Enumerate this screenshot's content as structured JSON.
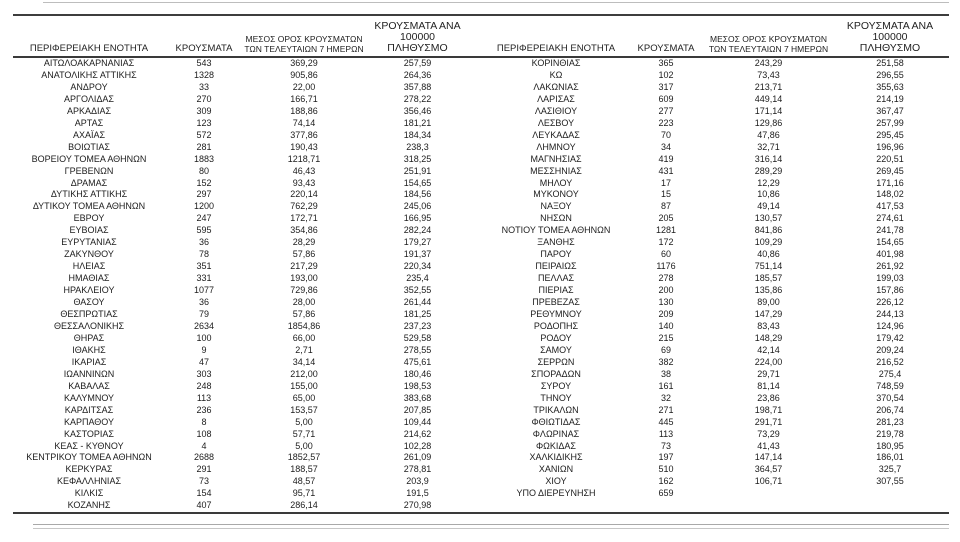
{
  "table": {
    "headers": {
      "region": "ΠΕΡΙΦΕΡΕΙΑΚΗ ΕΝΟΤΗΤΑ",
      "cases": "ΚΡΟΥΣΜΑΤΑ",
      "avg7day": "ΜΕΣΟΣ ΟΡΟΣ ΚΡΟΥΣΜΑΤΩΝ\nΤΩΝ ΤΕΛΕΥΤΑΙΩΝ 7 ΗΜΕΡΩΝ",
      "per100k": "ΚΡΟΥΣΜΑΤΑ ΑΝΑ 100000\nΠΛΗΘΥΣΜΟ"
    },
    "left_rows": [
      [
        "ΑΙΤΩΛΟΑΚΑΡΝΑΝΙΑΣ",
        "543",
        "369,29",
        "257,59"
      ],
      [
        "ΑΝΑΤΟΛΙΚΗΣ ΑΤΤΙΚΗΣ",
        "1328",
        "905,86",
        "264,36"
      ],
      [
        "ΑΝΔΡΟΥ",
        "33",
        "22,00",
        "357,88"
      ],
      [
        "ΑΡΓΟΛΙΔΑΣ",
        "270",
        "166,71",
        "278,22"
      ],
      [
        "ΑΡΚΑΔΙΑΣ",
        "309",
        "188,86",
        "356,46"
      ],
      [
        "ΑΡΤΑΣ",
        "123",
        "74,14",
        "181,21"
      ],
      [
        "ΑΧΑΪΑΣ",
        "572",
        "377,86",
        "184,34"
      ],
      [
        "ΒΟΙΩΤΙΑΣ",
        "281",
        "190,43",
        "238,3"
      ],
      [
        "ΒΟΡΕΙΟΥ ΤΟΜΕΑ ΑΘΗΝΩΝ",
        "1883",
        "1218,71",
        "318,25"
      ],
      [
        "ΓΡΕΒΕΝΩΝ",
        "80",
        "46,43",
        "251,91"
      ],
      [
        "ΔΡΑΜΑΣ",
        "152",
        "93,43",
        "154,65"
      ],
      [
        "ΔΥΤΙΚΗΣ ΑΤΤΙΚΗΣ",
        "297",
        "220,14",
        "184,56"
      ],
      [
        "ΔΥΤΙΚΟΥ ΤΟΜΕΑ ΑΘΗΝΩΝ",
        "1200",
        "762,29",
        "245,06"
      ],
      [
        "ΕΒΡΟΥ",
        "247",
        "172,71",
        "166,95"
      ],
      [
        "ΕΥΒΟΙΑΣ",
        "595",
        "354,86",
        "282,24"
      ],
      [
        "ΕΥΡΥΤΑΝΙΑΣ",
        "36",
        "28,29",
        "179,27"
      ],
      [
        "ΖΑΚΥΝΘΟΥ",
        "78",
        "57,86",
        "191,37"
      ],
      [
        "ΗΛΕΙΑΣ",
        "351",
        "217,29",
        "220,34"
      ],
      [
        "ΗΜΑΘΙΑΣ",
        "331",
        "193,00",
        "235,4"
      ],
      [
        "ΗΡΑΚΛΕΙΟΥ",
        "1077",
        "729,86",
        "352,55"
      ],
      [
        "ΘΑΣΟΥ",
        "36",
        "28,00",
        "261,44"
      ],
      [
        "ΘΕΣΠΡΩΤΙΑΣ",
        "79",
        "57,86",
        "181,25"
      ],
      [
        "ΘΕΣΣΑΛΟΝΙΚΗΣ",
        "2634",
        "1854,86",
        "237,23"
      ],
      [
        "ΘΗΡΑΣ",
        "100",
        "66,00",
        "529,58"
      ],
      [
        "ΙΘΑΚΗΣ",
        "9",
        "2,71",
        "278,55"
      ],
      [
        "ΙΚΑΡΙΑΣ",
        "47",
        "34,14",
        "475,61"
      ],
      [
        "ΙΩΑΝΝΙΝΩΝ",
        "303",
        "212,00",
        "180,46"
      ],
      [
        "ΚΑΒΑΛΑΣ",
        "248",
        "155,00",
        "198,53"
      ],
      [
        "ΚΑΛΥΜΝΟΥ",
        "113",
        "65,00",
        "383,68"
      ],
      [
        "ΚΑΡΔΙΤΣΑΣ",
        "236",
        "153,57",
        "207,85"
      ],
      [
        "ΚΑΡΠΑΘΟΥ",
        "8",
        "5,00",
        "109,44"
      ],
      [
        "ΚΑΣΤΟΡΙΑΣ",
        "108",
        "57,71",
        "214,62"
      ],
      [
        "ΚΕΑΣ - ΚΥΘΝΟΥ",
        "4",
        "5,00",
        "102,28"
      ],
      [
        "ΚΕΝΤΡΙΚΟΥ ΤΟΜΕΑ ΑΘΗΝΩΝ",
        "2688",
        "1852,57",
        "261,09"
      ],
      [
        "ΚΕΡΚΥΡΑΣ",
        "291",
        "188,57",
        "278,81"
      ],
      [
        "ΚΕΦΑΛΛΗΝΙΑΣ",
        "73",
        "48,57",
        "203,9"
      ],
      [
        "ΚΙΛΚΙΣ",
        "154",
        "95,71",
        "191,5"
      ],
      [
        "ΚΟΖΑΝΗΣ",
        "407",
        "286,14",
        "270,98"
      ]
    ],
    "right_rows": [
      [
        "ΚΟΡΙΝΘΙΑΣ",
        "365",
        "243,29",
        "251,58"
      ],
      [
        "ΚΩ",
        "102",
        "73,43",
        "296,55"
      ],
      [
        "ΛΑΚΩΝΙΑΣ",
        "317",
        "213,71",
        "355,63"
      ],
      [
        "ΛΑΡΙΣΑΣ",
        "609",
        "449,14",
        "214,19"
      ],
      [
        "ΛΑΣΙΘΙΟΥ",
        "277",
        "171,14",
        "367,47"
      ],
      [
        "ΛΕΣΒΟΥ",
        "223",
        "129,86",
        "257,99"
      ],
      [
        "ΛΕΥΚΑΔΑΣ",
        "70",
        "47,86",
        "295,45"
      ],
      [
        "ΛΗΜΝΟΥ",
        "34",
        "32,71",
        "196,96"
      ],
      [
        "ΜΑΓΝΗΣΙΑΣ",
        "419",
        "316,14",
        "220,51"
      ],
      [
        "ΜΕΣΣΗΝΙΑΣ",
        "431",
        "289,29",
        "269,45"
      ],
      [
        "ΜΗΛΟΥ",
        "17",
        "12,29",
        "171,16"
      ],
      [
        "ΜΥΚΟΝΟΥ",
        "15",
        "10,86",
        "148,02"
      ],
      [
        "ΝΑΞΟΥ",
        "87",
        "49,14",
        "417,53"
      ],
      [
        "ΝΗΣΩΝ",
        "205",
        "130,57",
        "274,61"
      ],
      [
        "ΝΟΤΙΟΥ ΤΟΜΕΑ ΑΘΗΝΩΝ",
        "1281",
        "841,86",
        "241,78"
      ],
      [
        "ΞΑΝΘΗΣ",
        "172",
        "109,29",
        "154,65"
      ],
      [
        "ΠΑΡΟΥ",
        "60",
        "40,86",
        "401,98"
      ],
      [
        "ΠΕΙΡΑΙΩΣ",
        "1176",
        "751,14",
        "261,92"
      ],
      [
        "ΠΕΛΛΑΣ",
        "278",
        "185,57",
        "199,03"
      ],
      [
        "ΠΙΕΡΙΑΣ",
        "200",
        "135,86",
        "157,86"
      ],
      [
        "ΠΡΕΒΕΖΑΣ",
        "130",
        "89,00",
        "226,12"
      ],
      [
        "ΡΕΘΥΜΝΟΥ",
        "209",
        "147,29",
        "244,13"
      ],
      [
        "ΡΟΔΟΠΗΣ",
        "140",
        "83,43",
        "124,96"
      ],
      [
        "ΡΟΔΟΥ",
        "215",
        "148,29",
        "179,42"
      ],
      [
        "ΣΑΜΟΥ",
        "69",
        "42,14",
        "209,24"
      ],
      [
        "ΣΕΡΡΩΝ",
        "382",
        "224,00",
        "216,52"
      ],
      [
        "ΣΠΟΡΑΔΩΝ",
        "38",
        "29,71",
        "275,4"
      ],
      [
        "ΣΥΡΟΥ",
        "161",
        "81,14",
        "748,59"
      ],
      [
        "ΤΗΝΟΥ",
        "32",
        "23,86",
        "370,54"
      ],
      [
        "ΤΡΙΚΑΛΩΝ",
        "271",
        "198,71",
        "206,74"
      ],
      [
        "ΦΘΙΩΤΙΔΑΣ",
        "445",
        "291,71",
        "281,23"
      ],
      [
        "ΦΛΩΡΙΝΑΣ",
        "113",
        "73,29",
        "219,78"
      ],
      [
        "ΦΩΚΙΔΑΣ",
        "73",
        "41,43",
        "180,95"
      ],
      [
        "ΧΑΛΚΙΔΙΚΗΣ",
        "197",
        "147,14",
        "186,01"
      ],
      [
        "ΧΑΝΙΩΝ",
        "510",
        "364,57",
        "325,7"
      ],
      [
        "ΧΙΟΥ",
        "162",
        "106,71",
        "307,55"
      ],
      [
        "ΥΠΟ ΔΙΕΡΕΥΝΗΣΗ",
        "659",
        "",
        ""
      ]
    ]
  },
  "colors": {
    "text": "#1c1c1c",
    "rule_dark": "#3a3a3a",
    "rule_light": "#bdbdbd",
    "background": "#ffffff"
  }
}
